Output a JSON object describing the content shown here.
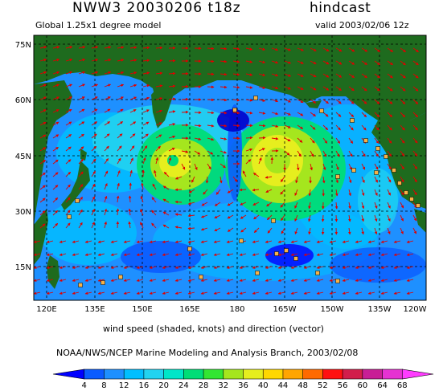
{
  "header": {
    "title": "NWW3 20030206 t18z",
    "run_type": "hindcast",
    "model": "Global 1.25x1 degree model",
    "valid": "valid 2003/02/06 12z"
  },
  "map": {
    "lat_labels": [
      "75N",
      "60N",
      "45N",
      "30N",
      "15N"
    ],
    "lon_labels": [
      "120E",
      "135E",
      "150E",
      "165E",
      "180",
      "165W",
      "150W",
      "135W",
      "120W"
    ],
    "colors": {
      "land": "#1e6b1e",
      "frame": "#000000",
      "grid": "#000000",
      "arrow": "#e00000",
      "buoy": "#f7b046"
    }
  },
  "caption": "wind speed (shaded, knots) and direction (vector)",
  "credit": "NOAA/NWS/NCEP Marine Modeling and Analysis Branch, 2003/02/08",
  "colorbar": {
    "labels": [
      "4",
      "8",
      "12",
      "16",
      "20",
      "24",
      "28",
      "32",
      "36",
      "40",
      "44",
      "48",
      "52",
      "56",
      "60",
      "64",
      "68"
    ],
    "colors": [
      "#0000ff",
      "#0a5cff",
      "#1e90ff",
      "#00bfff",
      "#22d3f0",
      "#00e6c8",
      "#00dd77",
      "#33e633",
      "#a5e61e",
      "#e6ee1e",
      "#ffd700",
      "#ffa500",
      "#ff6a00",
      "#ff1010",
      "#d21e4b",
      "#c81e96",
      "#e632d2",
      "#ff3cff"
    ]
  }
}
